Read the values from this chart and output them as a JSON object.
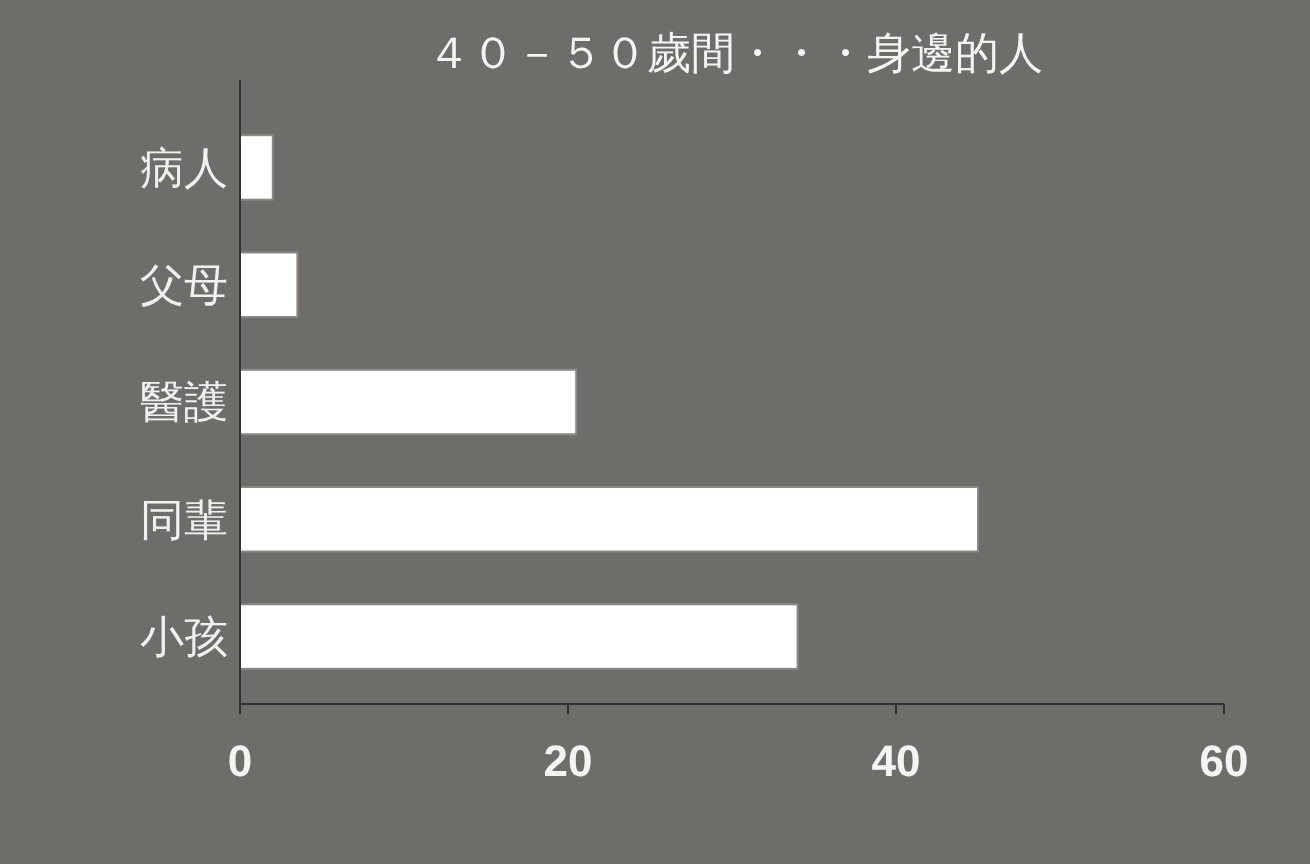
{
  "chart_data": {
    "type": "bar",
    "orientation": "horizontal",
    "title": "４０－５０歲間・・・身邊的人",
    "categories": [
      "病人",
      "父母",
      "醫護",
      "同輩",
      "小孩"
    ],
    "values": [
      2,
      3.5,
      20.5,
      45,
      34
    ],
    "color": "#ffffff",
    "xlim": [
      0,
      60
    ],
    "xticks": [
      0,
      20,
      40,
      60
    ]
  }
}
